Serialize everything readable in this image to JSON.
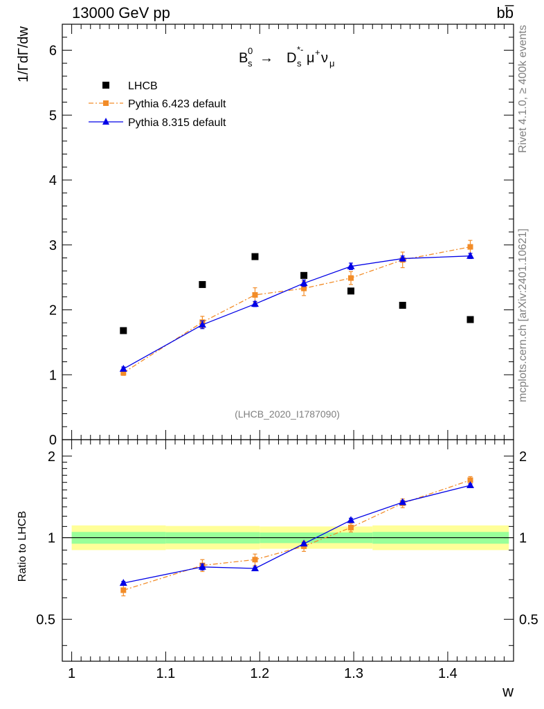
{
  "header": {
    "energy_label": "13000 GeV pp",
    "process_label": "bb̅"
  },
  "side_labels": {
    "rivet": "Rivet 4.1.0, ≥ 400k events",
    "source": "mcplots.cern.ch [arXiv:2401.10621]"
  },
  "analysis_id": "(LHCB_2020_I1787090)",
  "colors": {
    "data": "#000000",
    "pythia6": "#f28c28",
    "pythia8": "#0000e6",
    "band_inner": "#99ff99",
    "band_outer": "#ffff99"
  },
  "chart_data": [
    {
      "type": "scatter",
      "title": "B_s^0 → D_s^{*-} μ^+ ν_μ",
      "xlabel": "w",
      "ylabel": "1/ΓdΓ/dw",
      "xlim": [
        0.99,
        1.47
      ],
      "ylim": [
        0,
        6.4
      ],
      "yticks": [
        "0",
        "1",
        "2",
        "3",
        "4",
        "5",
        "6"
      ],
      "x": [
        1.055,
        1.139,
        1.195,
        1.247,
        1.297,
        1.352,
        1.424
      ],
      "series": [
        {
          "name": "LHCB",
          "values": [
            1.68,
            2.39,
            2.82,
            2.53,
            2.29,
            2.07,
            1.85
          ],
          "errors": [
            0.02,
            0.02,
            0.02,
            0.02,
            0.02,
            0.02,
            0.02
          ],
          "style": "square"
        },
        {
          "name": "Pythia 6.423 default",
          "values": [
            1.03,
            1.81,
            2.23,
            2.33,
            2.49,
            2.77,
            2.97
          ],
          "errors": [
            0.04,
            0.09,
            0.11,
            0.11,
            0.1,
            0.12,
            0.1
          ],
          "style": "dashdot-square"
        },
        {
          "name": "Pythia 8.315 default",
          "values": [
            1.09,
            1.77,
            2.09,
            2.41,
            2.67,
            2.79,
            2.83
          ],
          "errors": [
            0.03,
            0.06,
            0.04,
            0.05,
            0.05,
            0.04,
            0.04
          ],
          "style": "line-triangle"
        }
      ],
      "legend": [
        "LHCB",
        "Pythia 6.423 default",
        "Pythia 8.315 default"
      ]
    },
    {
      "type": "scatter",
      "ylabel": "Ratio to LHCB",
      "xlabel": "w",
      "xlim": [
        0.99,
        1.47
      ],
      "ylim": [
        0.35,
        2.3
      ],
      "yticks": [
        "0.5",
        "1",
        "2"
      ],
      "xticks": [
        "1",
        "1.1",
        "1.2",
        "1.3",
        "1.4"
      ],
      "x": [
        1.055,
        1.139,
        1.195,
        1.247,
        1.297,
        1.352,
        1.424
      ],
      "series": [
        {
          "name": "Pythia 6.423 default",
          "values": [
            0.64,
            0.79,
            0.83,
            0.93,
            1.09,
            1.34,
            1.63
          ],
          "errors": [
            0.03,
            0.04,
            0.04,
            0.04,
            0.04,
            0.05,
            0.05
          ]
        },
        {
          "name": "Pythia 8.315 default",
          "values": [
            0.68,
            0.78,
            0.77,
            0.95,
            1.16,
            1.35,
            1.56
          ],
          "errors": [
            0.01,
            0.02,
            0.01,
            0.01,
            0.02,
            0.02,
            0.02
          ]
        }
      ],
      "bands": [
        {
          "x0": 0.99,
          "x1": 1.1,
          "inner": [
            0.95,
            1.05
          ],
          "outer": [
            0.9,
            1.11
          ]
        },
        {
          "x0": 1.1,
          "x1": 1.2,
          "inner": [
            0.952,
            1.048
          ],
          "outer": [
            0.905,
            1.105
          ]
        },
        {
          "x0": 1.2,
          "x1": 1.32,
          "inner": [
            0.955,
            1.045
          ],
          "outer": [
            0.91,
            1.1
          ]
        },
        {
          "x0": 1.32,
          "x1": 1.47,
          "inner": [
            0.95,
            1.05
          ],
          "outer": [
            0.9,
            1.11
          ]
        }
      ]
    }
  ]
}
